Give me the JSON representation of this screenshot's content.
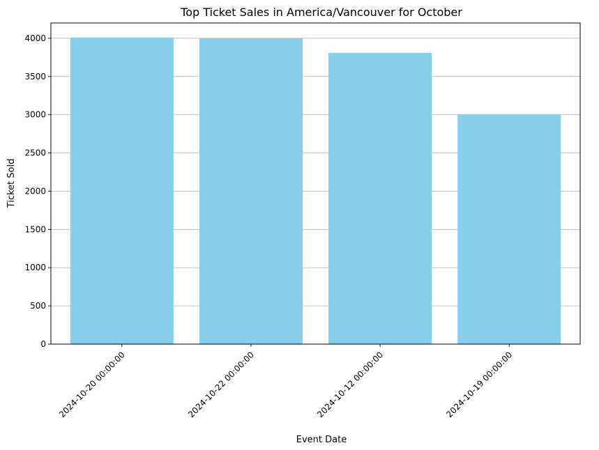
{
  "chart_data": {
    "type": "bar",
    "title": "Top Ticket Sales in America/Vancouver for October",
    "xlabel": "Event Date",
    "ylabel": "Ticket Sold",
    "categories": [
      "2024-10-20 00:00:00",
      "2024-10-22 00:00:00",
      "2024-10-12 00:00:00",
      "2024-10-19 00:00:00"
    ],
    "values": [
      4010,
      3995,
      3810,
      3005
    ],
    "ylim": [
      0,
      4200
    ],
    "yticks": [
      0,
      500,
      1000,
      1500,
      2000,
      2500,
      3000,
      3500,
      4000
    ],
    "grid": "y",
    "bar_color": "#87ceeb",
    "grid_color": "#b0b0b0"
  }
}
